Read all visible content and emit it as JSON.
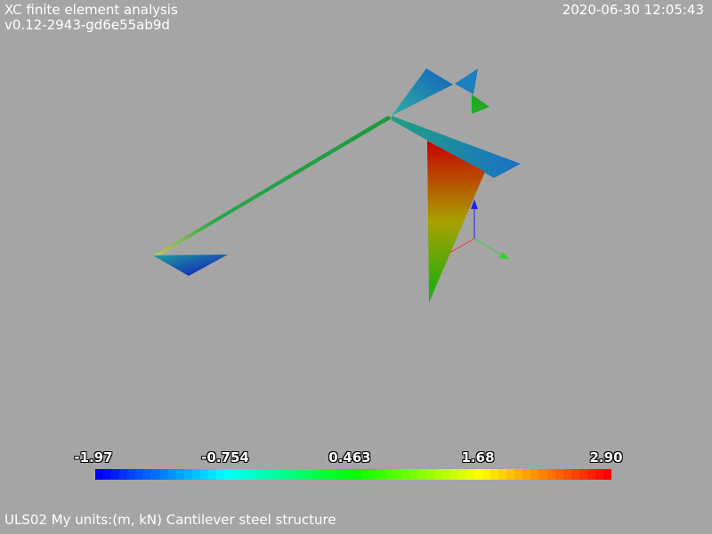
{
  "header": {
    "title": "XC finite element analysis",
    "version": "v0.12-2943-gd6e55ab9d",
    "timestamp": "2020-06-30 12:05:43"
  },
  "footer": {
    "caption": "ULS02 My units:(m, kN) Cantilever steel structure"
  },
  "legend": {
    "ticks": [
      "-1.97",
      "-0.754",
      "0.463",
      "1.68",
      "2.90"
    ],
    "min": -1.97,
    "max": 2.9
  },
  "colors": {
    "background": "#a5a5a5",
    "axis_x": "#ff3030",
    "axis_y": "#30d030",
    "axis_z": "#2020ff"
  }
}
